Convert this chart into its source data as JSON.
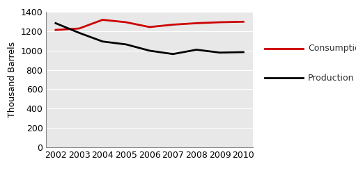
{
  "years": [
    2002,
    2003,
    2004,
    2005,
    2006,
    2007,
    2008,
    2009,
    2010
  ],
  "consumption": [
    1215,
    1230,
    1320,
    1295,
    1245,
    1270,
    1285,
    1295,
    1300
  ],
  "production": [
    1285,
    1185,
    1095,
    1065,
    1000,
    965,
    1010,
    980,
    985
  ],
  "consumption_color": "#cc0000",
  "production_color": "#000000",
  "ylabel": "Thousand Barrels",
  "ylim": [
    0,
    1400
  ],
  "yticks": [
    0,
    200,
    400,
    600,
    800,
    1000,
    1200,
    1400
  ],
  "background_color": "#e8e8e8",
  "legend_consumption": "Consumption",
  "legend_production": "Production",
  "line_width": 2.0,
  "grid_color": "#ffffff",
  "tick_label_fontsize": 9,
  "ylabel_fontsize": 9,
  "legend_fontsize": 9
}
